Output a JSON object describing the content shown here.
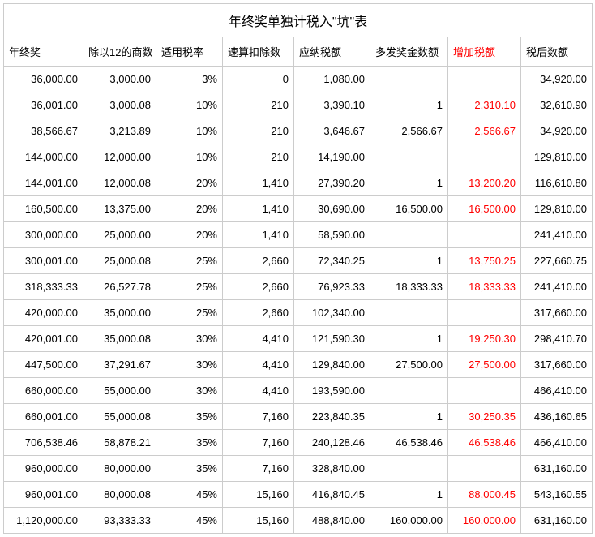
{
  "title": "年终奖单独计税入\"坑\"表",
  "columns": [
    "年终奖",
    "除以12的商数",
    "适用税率",
    "速算扣除数",
    "应纳税额",
    "多发奖金数额",
    "增加税额",
    "税后数额"
  ],
  "highlight_header_indices": [
    6
  ],
  "highlight_color": "#ff0000",
  "rows": [
    [
      "36,000.00",
      "3,000.00",
      "3%",
      "0",
      "1,080.00",
      "",
      "",
      "34,920.00"
    ],
    [
      "36,001.00",
      "3,000.08",
      "10%",
      "210",
      "3,390.10",
      "1",
      "2,310.10",
      "32,610.90"
    ],
    [
      "38,566.67",
      "3,213.89",
      "10%",
      "210",
      "3,646.67",
      "2,566.67",
      "2,566.67",
      "34,920.00"
    ],
    [
      "144,000.00",
      "12,000.00",
      "10%",
      "210",
      "14,190.00",
      "",
      "",
      "129,810.00"
    ],
    [
      "144,001.00",
      "12,000.08",
      "20%",
      "1,410",
      "27,390.20",
      "1",
      "13,200.20",
      "116,610.80"
    ],
    [
      "160,500.00",
      "13,375.00",
      "20%",
      "1,410",
      "30,690.00",
      "16,500.00",
      "16,500.00",
      "129,810.00"
    ],
    [
      "300,000.00",
      "25,000.00",
      "20%",
      "1,410",
      "58,590.00",
      "",
      "",
      "241,410.00"
    ],
    [
      "300,001.00",
      "25,000.08",
      "25%",
      "2,660",
      "72,340.25",
      "1",
      "13,750.25",
      "227,660.75"
    ],
    [
      "318,333.33",
      "26,527.78",
      "25%",
      "2,660",
      "76,923.33",
      "18,333.33",
      "18,333.33",
      "241,410.00"
    ],
    [
      "420,000.00",
      "35,000.00",
      "25%",
      "2,660",
      "102,340.00",
      "",
      "",
      "317,660.00"
    ],
    [
      "420,001.00",
      "35,000.08",
      "30%",
      "4,410",
      "121,590.30",
      "1",
      "19,250.30",
      "298,410.70"
    ],
    [
      "447,500.00",
      "37,291.67",
      "30%",
      "4,410",
      "129,840.00",
      "27,500.00",
      "27,500.00",
      "317,660.00"
    ],
    [
      "660,000.00",
      "55,000.00",
      "30%",
      "4,410",
      "193,590.00",
      "",
      "",
      "466,410.00"
    ],
    [
      "660,001.00",
      "55,000.08",
      "35%",
      "7,160",
      "223,840.35",
      "1",
      "30,250.35",
      "436,160.65"
    ],
    [
      "706,538.46",
      "58,878.21",
      "35%",
      "7,160",
      "240,128.46",
      "46,538.46",
      "46,538.46",
      "466,410.00"
    ],
    [
      "960,000.00",
      "80,000.00",
      "35%",
      "7,160",
      "328,840.00",
      "",
      "",
      "631,160.00"
    ],
    [
      "960,001.00",
      "80,000.08",
      "45%",
      "15,160",
      "416,840.45",
      "1",
      "88,000.45",
      "543,160.55"
    ],
    [
      "1,120,000.00",
      "93,333.33",
      "45%",
      "15,160",
      "488,840.00",
      "160,000.00",
      "160,000.00",
      "631,160.00"
    ]
  ],
  "highlight_column_index": 6
}
